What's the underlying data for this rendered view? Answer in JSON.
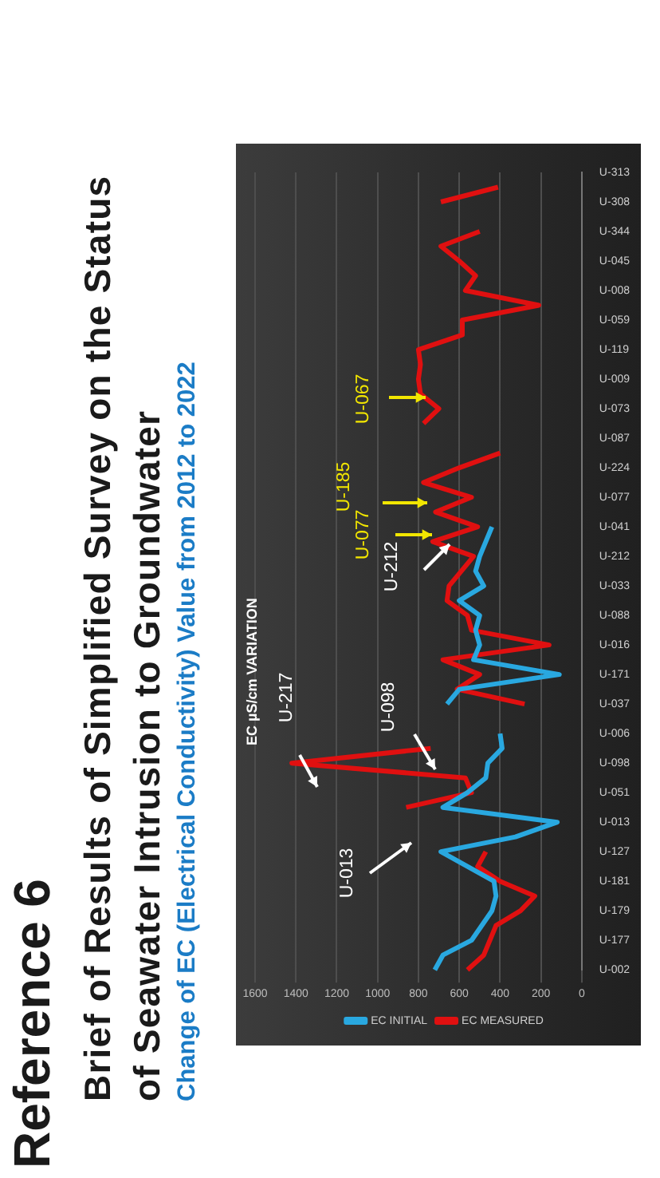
{
  "chart_data": {
    "type": "line",
    "orientation": "horizontal",
    "title": "Brief of Results of Simplified Survey on the Status of Seawater Intrusion to Groundwater",
    "subtitle": "Change of EC (Electrical Conductivity) Value from 2012 to 2022",
    "annotations": [
      "Reference 6",
      "EC µS/cm VARIATION",
      "U-217",
      "U-098",
      "U-013",
      "U-212",
      "U-077",
      "U-185",
      "U-067"
    ],
    "categories": [
      "U-313",
      null,
      "U-308",
      null,
      "U-344",
      null,
      "U-045",
      null,
      "U-008",
      null,
      "U-059",
      null,
      "U-119",
      null,
      "U-009",
      null,
      "U-073",
      null,
      "U-087",
      null,
      "U-224",
      null,
      "U-077",
      null,
      "U-041",
      null,
      "U-212",
      null,
      "U-033",
      null,
      "U-088",
      null,
      "U-016",
      null,
      "U-171",
      null,
      "U-037",
      null,
      "U-006",
      null,
      "U-098",
      null,
      "U-051",
      null,
      "U-013",
      null,
      "U-127",
      null,
      "U-181",
      null,
      "U-179",
      null,
      "U-177",
      null,
      "U-002"
    ],
    "series": [
      {
        "name": "EC INITIAL",
        "color": "#29a8e0",
        "values": [
          null,
          null,
          null,
          null,
          null,
          null,
          null,
          null,
          null,
          null,
          null,
          null,
          null,
          null,
          null,
          null,
          null,
          null,
          null,
          null,
          null,
          null,
          null,
          null,
          440,
          470,
          500,
          520,
          480,
          600,
          500,
          520,
          500,
          530,
          110,
          600,
          660,
          null,
          400,
          390,
          460,
          470,
          560,
          680,
          120,
          325,
          690,
          560,
          430,
          420,
          440,
          490,
          540,
          680,
          720
        ]
      },
      {
        "name": "EC MEASURED",
        "color": "#e01010",
        "values": [
          null,
          410,
          690,
          null,
          500,
          690,
          600,
          520,
          570,
          210,
          585,
          585,
          800,
          790,
          800,
          790,
          700,
          775,
          null,
          400,
          600,
          775,
          540,
          716,
          510,
          730,
          530,
          590,
          650,
          660,
          560,
          540,
          160,
          680,
          500,
          610,
          280,
          null,
          null,
          740,
          1420,
          570,
          540,
          860,
          null,
          null,
          470,
          510,
          400,
          230,
          300,
          420,
          450,
          480,
          560
        ]
      }
    ],
    "xlim": [
      1600,
      0
    ],
    "xticks": [
      0,
      200,
      400,
      600,
      800,
      1000,
      1200,
      1400,
      1600
    ],
    "grid": "x",
    "legend": "bottom",
    "line_style": "solid"
  }
}
